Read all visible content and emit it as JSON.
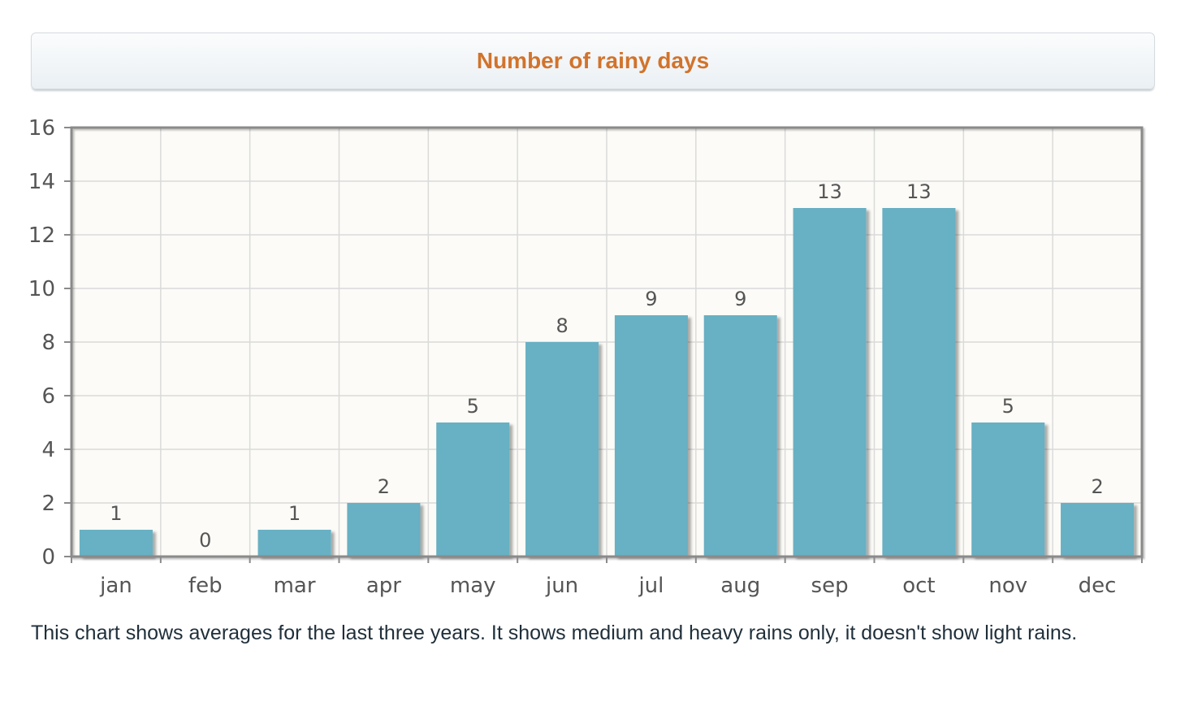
{
  "header": {
    "title": "Number of rainy days"
  },
  "chart_data": {
    "type": "bar",
    "title": "Number of rainy days",
    "xlabel": "",
    "ylabel": "",
    "categories": [
      "jan",
      "feb",
      "mar",
      "apr",
      "may",
      "jun",
      "jul",
      "aug",
      "sep",
      "oct",
      "nov",
      "dec"
    ],
    "values": [
      1,
      0,
      1,
      2,
      5,
      8,
      9,
      9,
      13,
      13,
      5,
      2
    ],
    "ylim": [
      0,
      16
    ],
    "yticks": [
      0,
      2,
      4,
      6,
      8,
      10,
      12,
      14,
      16
    ],
    "grid": true,
    "data_labels": true,
    "legend": "none",
    "colors": {
      "bar": "#68b0c3",
      "plot_background": "#fcfbf7",
      "grid": "#dadada",
      "axis": "#8a8a8a",
      "label_text": "#555555",
      "title": "#d2732b"
    }
  },
  "footer": {
    "note": "This chart shows averages for the last three years. It shows medium and heavy rains only, it doesn't show light rains."
  }
}
